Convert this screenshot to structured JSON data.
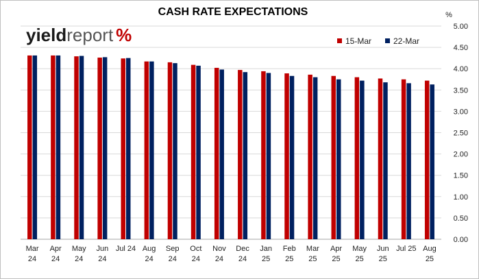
{
  "logo": {
    "part1": "yield",
    "part2": "report",
    "part3": "%"
  },
  "chart_data": {
    "type": "bar",
    "title": "CASH RATE EXPECTATIONS",
    "ylabel": "%",
    "ylim": [
      0,
      5
    ],
    "yticks": [
      "0.00",
      "0.50",
      "1.00",
      "1.50",
      "2.00",
      "2.50",
      "3.00",
      "3.50",
      "4.00",
      "4.50",
      "5.00"
    ],
    "grid": true,
    "legend_position": "top-right",
    "categories": [
      [
        "Mar",
        "24"
      ],
      [
        "Apr",
        "24"
      ],
      [
        "May",
        "24"
      ],
      [
        "Jun",
        "24"
      ],
      [
        "Jul 24",
        ""
      ],
      [
        "Aug",
        "24"
      ],
      [
        "Sep",
        "24"
      ],
      [
        "Oct",
        "24"
      ],
      [
        "Nov",
        "24"
      ],
      [
        "Dec",
        "24"
      ],
      [
        "Jan",
        "25"
      ],
      [
        "Feb",
        "25"
      ],
      [
        "Mar",
        "25"
      ],
      [
        "Apr",
        "25"
      ],
      [
        "May",
        "25"
      ],
      [
        "Jun",
        "25"
      ],
      [
        "Jul 25",
        ""
      ],
      [
        "Aug",
        "25"
      ]
    ],
    "series": [
      {
        "name": "15-Mar",
        "color": "#c00000",
        "values": [
          4.31,
          4.31,
          4.29,
          4.26,
          4.24,
          4.17,
          4.15,
          4.09,
          4.02,
          3.97,
          3.94,
          3.89,
          3.86,
          3.83,
          3.8,
          3.77,
          3.75,
          3.72
        ]
      },
      {
        "name": "22-Mar",
        "color": "#002060",
        "values": [
          4.31,
          4.31,
          4.3,
          4.27,
          4.25,
          4.17,
          4.13,
          4.07,
          3.98,
          3.92,
          3.9,
          3.83,
          3.8,
          3.75,
          3.72,
          3.68,
          3.66,
          3.63
        ]
      }
    ]
  }
}
